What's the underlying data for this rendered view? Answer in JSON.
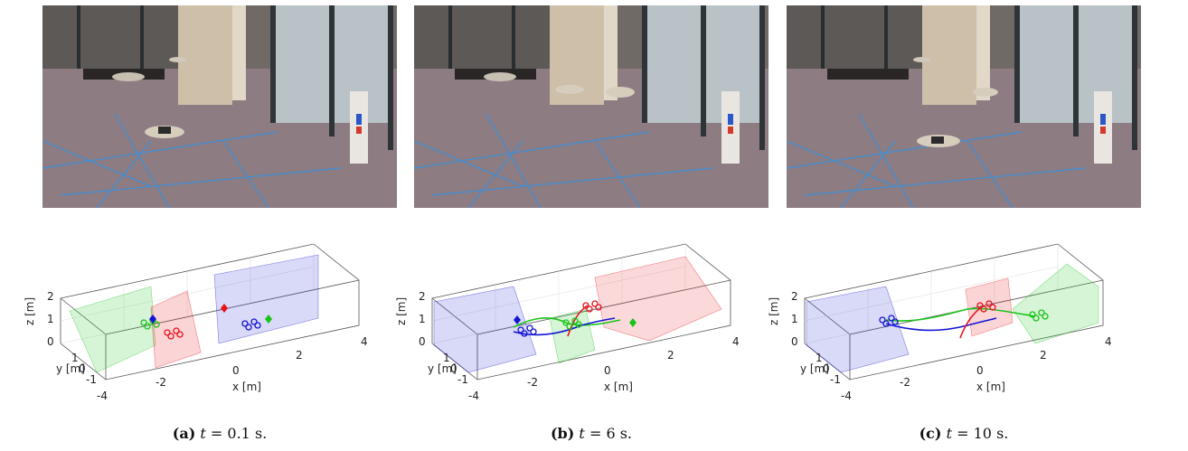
{
  "figure": {
    "panels": [
      {
        "id": "a",
        "caption_label": "(a)",
        "caption_var": "t",
        "caption_eq": "=",
        "caption_value": "0.1",
        "caption_unit": "s.",
        "axes": {
          "zlabel": "z [m]",
          "ylabel": "y [m]",
          "xlabel": "x [m]",
          "z_ticks": [
            "2",
            "1",
            "0"
          ],
          "y_ticks": [
            "1",
            "0",
            "-1"
          ],
          "x_ticks": [
            "-4",
            "-2",
            "0",
            "2",
            "4"
          ]
        }
      },
      {
        "id": "b",
        "caption_label": "(b)",
        "caption_var": "t",
        "caption_eq": "=",
        "caption_value": "6",
        "caption_unit": "s.",
        "axes": {
          "zlabel": "z [m]",
          "ylabel": "y [m]",
          "xlabel": "x [m]",
          "z_ticks": [
            "2",
            "1",
            "0"
          ],
          "y_ticks": [
            "1",
            "0",
            "-1"
          ],
          "x_ticks": [
            "-4",
            "-2",
            "0",
            "2",
            "4"
          ]
        }
      },
      {
        "id": "c",
        "caption_label": "(c)",
        "caption_var": "t",
        "caption_eq": "=",
        "caption_value": "10",
        "caption_unit": "s.",
        "axes": {
          "zlabel": "z [m]",
          "ylabel": "y [m]",
          "xlabel": "x [m]",
          "z_ticks": [
            "2",
            "1",
            "0"
          ],
          "y_ticks": [
            "1",
            "0",
            "-1"
          ],
          "x_ticks": [
            "-4",
            "-2",
            "0",
            "2",
            "4"
          ]
        }
      }
    ],
    "colors": {
      "red": "#e8101a",
      "green": "#19c419",
      "blue": "#1414d4",
      "floor": "#7c6a70",
      "window": "#b8c2c8"
    }
  }
}
